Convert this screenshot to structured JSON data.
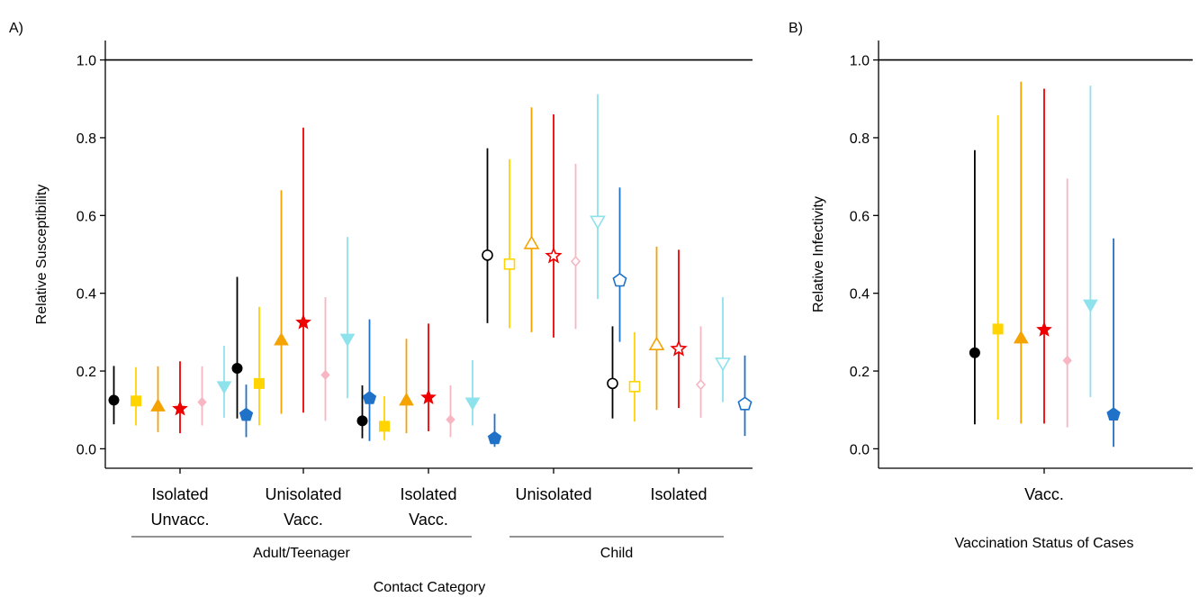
{
  "chart_data": [
    {
      "panel": "A)",
      "type": "scatter",
      "ylabel": "Relative Susceptibility",
      "xlabel": "Contact Category",
      "ylim": [
        -0.05,
        1.05
      ],
      "yticks": [
        "0.0",
        "0.2",
        "0.4",
        "0.6",
        "0.8",
        "1.0"
      ],
      "reference_line": 1.0,
      "categories": [
        {
          "line1": "Isolated",
          "line2": "Unvacc.",
          "open": false
        },
        {
          "line1": "Unisolated",
          "line2": "Vacc.",
          "open": false
        },
        {
          "line1": "Isolated",
          "line2": "Vacc.",
          "open": false
        },
        {
          "line1": "Unisolated",
          "line2": "",
          "open": true
        },
        {
          "line1": "Isolated",
          "line2": "",
          "open": true
        }
      ],
      "groups": [
        {
          "label": "Adult/Teenager",
          "categories": [
            0,
            1,
            2
          ]
        },
        {
          "label": "Child",
          "categories": [
            3,
            4
          ]
        }
      ],
      "series": [
        {
          "color": "#000000",
          "shape": "circle",
          "points": [
            [
              0.125,
              0.063,
              0.213
            ],
            [
              0.207,
              0.078,
              0.442
            ],
            [
              0.072,
              0.027,
              0.163
            ],
            [
              0.498,
              0.323,
              0.773
            ],
            [
              0.168,
              0.078,
              0.315
            ]
          ]
        },
        {
          "color": "#FFD400",
          "shape": "square",
          "points": [
            [
              0.123,
              0.06,
              0.21
            ],
            [
              0.168,
              0.06,
              0.365
            ],
            [
              0.058,
              0.022,
              0.135
            ],
            [
              0.475,
              0.31,
              0.745
            ],
            [
              0.16,
              0.07,
              0.3
            ]
          ]
        },
        {
          "color": "#F5A300",
          "shape": "triangle-up",
          "points": [
            [
              0.11,
              0.043,
              0.212
            ],
            [
              0.28,
              0.09,
              0.665
            ],
            [
              0.125,
              0.04,
              0.283
            ],
            [
              0.528,
              0.3,
              0.878
            ],
            [
              0.268,
              0.1,
              0.52
            ]
          ]
        },
        {
          "color": "#EE0000",
          "shape": "star",
          "points": [
            [
              0.103,
              0.04,
              0.225
            ],
            [
              0.325,
              0.093,
              0.826
            ],
            [
              0.132,
              0.045,
              0.322
            ],
            [
              0.496,
              0.286,
              0.86
            ],
            [
              0.257,
              0.105,
              0.512
            ]
          ]
        },
        {
          "color": "#F7B6C2",
          "shape": "diamond",
          "points": [
            [
              0.12,
              0.06,
              0.212
            ],
            [
              0.19,
              0.072,
              0.39
            ],
            [
              0.075,
              0.03,
              0.163
            ],
            [
              0.482,
              0.308,
              0.733
            ],
            [
              0.165,
              0.08,
              0.315
            ]
          ]
        },
        {
          "color": "#8EE2EC",
          "shape": "triangle-down",
          "points": [
            [
              0.16,
              0.08,
              0.265
            ],
            [
              0.282,
              0.13,
              0.545
            ],
            [
              0.118,
              0.06,
              0.228
            ],
            [
              0.585,
              0.385,
              0.912
            ],
            [
              0.22,
              0.12,
              0.39
            ]
          ]
        },
        {
          "color": "#1F72C8",
          "shape": "pentagon",
          "points": [
            [
              0.087,
              0.03,
              0.165
            ],
            [
              0.13,
              0.02,
              0.333
            ],
            [
              0.027,
              0.005,
              0.09
            ],
            [
              0.433,
              0.275,
              0.672
            ],
            [
              0.115,
              0.033,
              0.24
            ]
          ]
        }
      ]
    },
    {
      "panel": "B)",
      "type": "scatter",
      "ylabel": "Relative Infectivity",
      "xlabel": "Vaccination Status of Cases",
      "ylim": [
        -0.05,
        1.05
      ],
      "yticks": [
        "0.0",
        "0.2",
        "0.4",
        "0.6",
        "0.8",
        "1.0"
      ],
      "reference_line": 1.0,
      "categories": [
        {
          "line1": "Vacc.",
          "line2": "",
          "open": false
        }
      ],
      "series": [
        {
          "color": "#000000",
          "shape": "circle",
          "points": [
            [
              0.247,
              0.063,
              0.768
            ]
          ]
        },
        {
          "color": "#FFD400",
          "shape": "square",
          "points": [
            [
              0.308,
              0.075,
              0.858
            ]
          ]
        },
        {
          "color": "#F5A300",
          "shape": "triangle-up",
          "points": [
            [
              0.285,
              0.065,
              0.944
            ]
          ]
        },
        {
          "color": "#EE0000",
          "shape": "star",
          "points": [
            [
              0.306,
              0.065,
              0.926
            ]
          ]
        },
        {
          "color": "#F7B6C2",
          "shape": "diamond",
          "points": [
            [
              0.227,
              0.055,
              0.695
            ]
          ]
        },
        {
          "color": "#8EE2EC",
          "shape": "triangle-down",
          "points": [
            [
              0.37,
              0.133,
              0.934
            ]
          ]
        },
        {
          "color": "#1F72C8",
          "shape": "pentagon",
          "points": [
            [
              0.088,
              0.005,
              0.541
            ]
          ]
        }
      ]
    }
  ]
}
